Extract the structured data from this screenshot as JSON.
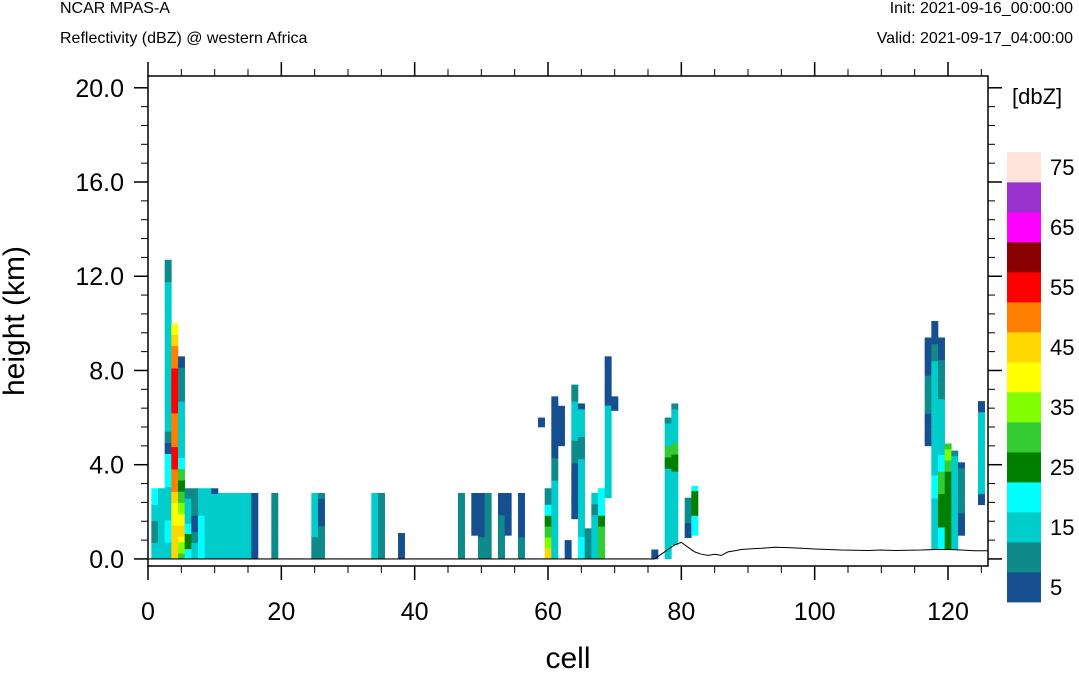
{
  "header": {
    "model": "NCAR MPAS-A",
    "field": "Reflectivity (dBZ) @ western Africa",
    "init": "Init: 2021-09-16_00:00:00",
    "valid": "Valid: 2021-09-17_04:00:00"
  },
  "chart_data": {
    "type": "heatmap",
    "xlabel": "cell",
    "ylabel": "height (km)",
    "xlim": [
      0,
      126
    ],
    "ylim": [
      -0.3,
      20.5
    ],
    "x_ticks": [
      0,
      20,
      40,
      60,
      80,
      100,
      120
    ],
    "y_ticks": [
      0.0,
      4.0,
      8.0,
      12.0,
      16.0,
      20.0
    ],
    "y_tick_labels": [
      "0.0",
      "4.0",
      "8.0",
      "12.0",
      "16.0",
      "20.0"
    ],
    "grid": false,
    "colorbar": {
      "title": "[dbZ]",
      "levels": [
        5,
        10,
        15,
        20,
        25,
        30,
        35,
        40,
        45,
        50,
        55,
        60,
        65,
        70,
        75
      ],
      "labels": [
        "5",
        "15",
        "25",
        "35",
        "45",
        "55",
        "65",
        "75"
      ],
      "colors": [
        "#164f8f",
        "#0f8a8a",
        "#00cccc",
        "#00ffff",
        "#008000",
        "#33cc33",
        "#7fff00",
        "#ffff00",
        "#ffd700",
        "#ff8000",
        "#ff0000",
        "#8b0000",
        "#ff00ff",
        "#9932cc",
        "#ffe4dc"
      ]
    },
    "cells": [
      [
        1,
        0.0,
        3.0,
        [
          15,
          15,
          15,
          10,
          10,
          10,
          10,
          15,
          15,
          15,
          20,
          20,
          20
        ]
      ],
      [
        2,
        0.0,
        3.0,
        [
          15,
          15,
          15,
          15,
          15,
          15,
          15,
          15,
          15,
          15,
          15,
          15,
          15
        ]
      ],
      [
        3,
        0.0,
        12.7,
        [
          15,
          15,
          15,
          20,
          20,
          20,
          20,
          15,
          15,
          15,
          15,
          15,
          15,
          20,
          20,
          20,
          20,
          20,
          20,
          5,
          5,
          10,
          10,
          15,
          15,
          15,
          15,
          15,
          15,
          15,
          15,
          15,
          15,
          15,
          15,
          15,
          15,
          15,
          15,
          15,
          15,
          15,
          15,
          15,
          15,
          15,
          15,
          15,
          15,
          15,
          10,
          10,
          10,
          10
        ]
      ],
      [
        4,
        0.0,
        10.0,
        [
          45,
          45,
          45,
          45,
          45,
          45,
          40,
          40,
          40,
          40,
          45,
          45,
          50,
          50,
          50,
          50,
          55,
          55,
          55,
          55,
          50,
          50,
          50,
          50,
          50,
          50,
          55,
          55,
          55,
          55,
          55,
          55,
          55,
          55,
          50,
          50,
          50,
          50,
          45,
          45,
          40,
          40
        ]
      ],
      [
        5,
        0.0,
        8.6,
        [
          30,
          35,
          35,
          40,
          45,
          45,
          40,
          40,
          35,
          35,
          30,
          30,
          25,
          25,
          30,
          30,
          20,
          20,
          15,
          15,
          15,
          15,
          15,
          15,
          15,
          15,
          15,
          15,
          10,
          10,
          10,
          10,
          10,
          10,
          5,
          5
        ]
      ],
      [
        6,
        0.0,
        3.0,
        [
          20,
          20,
          25,
          25,
          25,
          20,
          20,
          15,
          15,
          15,
          15,
          15,
          10,
          10
        ]
      ],
      [
        7,
        0.0,
        3.0,
        [
          15,
          15,
          15,
          10,
          10,
          5,
          5,
          5,
          10,
          10,
          10,
          10,
          10
        ]
      ],
      [
        8,
        0.0,
        3.0,
        [
          20,
          20,
          20,
          20,
          20,
          20,
          20,
          20,
          15,
          15,
          15,
          15,
          15
        ]
      ],
      [
        9,
        0.0,
        3.0,
        [
          15,
          15,
          15,
          15,
          15,
          15,
          15,
          15,
          15,
          15,
          15,
          15,
          15
        ]
      ],
      [
        10,
        0.0,
        3.0,
        [
          15,
          15,
          15,
          15,
          15,
          15,
          15,
          15,
          15,
          15,
          15,
          15,
          5
        ]
      ],
      [
        11,
        0.0,
        2.8,
        [
          15,
          15,
          15,
          15,
          15,
          15,
          15,
          15,
          15,
          15,
          15,
          15
        ]
      ],
      [
        12,
        0.0,
        2.8,
        [
          15,
          15,
          15,
          15,
          15,
          15,
          15,
          15,
          15,
          15,
          15,
          15
        ]
      ],
      [
        13,
        0.0,
        2.8,
        [
          15,
          15,
          15,
          15,
          15,
          15,
          15,
          15,
          15,
          15,
          15,
          15
        ]
      ],
      [
        14,
        0.0,
        2.8,
        [
          15,
          15,
          15,
          15,
          15,
          15,
          15,
          15,
          15,
          15,
          15,
          15
        ]
      ],
      [
        15,
        0.0,
        2.8,
        [
          15,
          15,
          15,
          15,
          15,
          15,
          15,
          15,
          15,
          15,
          15,
          15
        ]
      ],
      [
        16,
        0.0,
        2.8,
        [
          5,
          5,
          5,
          5,
          5,
          5,
          5,
          5,
          5,
          5,
          5,
          5
        ]
      ],
      [
        19,
        0.0,
        2.8,
        [
          10,
          10,
          10,
          10,
          10,
          10,
          10,
          10,
          10,
          10,
          10,
          10
        ]
      ],
      [
        25,
        0.0,
        2.8,
        [
          10,
          10,
          10,
          10,
          15,
          15,
          15,
          15,
          15,
          15,
          15,
          15
        ]
      ],
      [
        26,
        0.0,
        2.8,
        [
          10,
          10,
          10,
          10,
          10,
          10,
          5,
          5,
          5,
          5,
          5,
          10
        ]
      ],
      [
        34,
        0.0,
        2.8,
        [
          15,
          15,
          15,
          15,
          15,
          15,
          15,
          15,
          15,
          15,
          15,
          15
        ]
      ],
      [
        35,
        0.0,
        2.8,
        [
          10,
          10,
          10,
          10,
          10,
          10,
          10,
          10,
          10,
          10,
          10,
          10
        ]
      ],
      [
        38,
        0.0,
        1.1,
        [
          5,
          5,
          5,
          5,
          5
        ]
      ],
      [
        47,
        0.0,
        2.8,
        [
          10,
          10,
          10,
          10,
          10,
          10,
          10,
          10,
          10,
          10,
          10,
          10
        ]
      ],
      [
        49,
        1.0,
        2.8,
        [
          5,
          5,
          5,
          5,
          5,
          5,
          5,
          5
        ]
      ],
      [
        50,
        0.0,
        2.8,
        [
          10,
          10,
          10,
          10,
          5,
          5,
          5,
          5,
          5,
          5,
          5,
          5
        ]
      ],
      [
        51,
        0.0,
        2.8,
        [
          10,
          10,
          10,
          10,
          10,
          10,
          10,
          10,
          10,
          10,
          10,
          10
        ]
      ],
      [
        53,
        0.0,
        2.8,
        [
          10,
          10,
          10,
          10,
          10,
          10,
          10,
          10,
          5,
          5,
          5,
          5
        ]
      ],
      [
        54,
        1.0,
        2.8,
        [
          5,
          5,
          5,
          5,
          5,
          5,
          5,
          5
        ]
      ],
      [
        56,
        0.0,
        2.8,
        [
          10,
          10,
          10,
          10,
          5,
          5,
          5,
          5,
          5,
          5,
          5,
          5
        ]
      ],
      [
        60,
        0.0,
        3.0,
        [
          45,
          45,
          35,
          35,
          30,
          30,
          25,
          25,
          20,
          20,
          10,
          10,
          10
        ]
      ],
      [
        59,
        5.6,
        6.0,
        [
          5,
          5
        ]
      ],
      [
        61,
        0.0,
        6.9,
        [
          15,
          15,
          15,
          15,
          15,
          15,
          15,
          15,
          15,
          15,
          15,
          15,
          15,
          15,
          10,
          10,
          10,
          10,
          5,
          5,
          5,
          5,
          5,
          5,
          5,
          5,
          5,
          5,
          5
        ]
      ],
      [
        62,
        4.8,
        6.5,
        [
          5,
          5,
          5,
          5,
          5,
          5,
          5
        ]
      ],
      [
        63,
        0.0,
        0.8,
        [
          5,
          5,
          5
        ]
      ],
      [
        64,
        1.7,
        7.4,
        [
          5,
          5,
          5,
          5,
          5,
          5,
          5,
          5,
          5,
          5,
          10,
          10,
          10,
          10,
          15,
          15,
          15,
          15,
          15,
          15,
          15,
          10,
          10,
          10
        ]
      ],
      [
        65,
        0.0,
        6.6,
        [
          20,
          20,
          20,
          20,
          15,
          15,
          15,
          15,
          15,
          15,
          15,
          15,
          15,
          15,
          15,
          15,
          15,
          15,
          10,
          10,
          10,
          10,
          15,
          15,
          15,
          15,
          15,
          5
        ]
      ],
      [
        66,
        0.0,
        1.3,
        [
          10,
          10,
          10,
          10,
          10,
          10
        ]
      ],
      [
        67,
        0.0,
        2.8,
        [
          15,
          15,
          15,
          15,
          15,
          15,
          15,
          15,
          10,
          10,
          15,
          15
        ]
      ],
      [
        68,
        0.0,
        3.0,
        [
          30,
          30,
          30,
          30,
          30,
          30,
          25,
          25,
          20,
          20,
          20,
          20,
          20
        ]
      ],
      [
        69,
        2.6,
        8.6,
        [
          15,
          15,
          15,
          15,
          15,
          15,
          15,
          15,
          15,
          15,
          15,
          15,
          15,
          15,
          15,
          15,
          15,
          5,
          5,
          5,
          5,
          5,
          5,
          5,
          5,
          5
        ]
      ],
      [
        70,
        6.3,
        6.9,
        [
          5,
          5,
          5
        ]
      ],
      [
        76,
        0.0,
        0.4,
        [
          5,
          5
        ]
      ],
      [
        78,
        0.0,
        6.0,
        [
          15,
          15,
          15,
          15,
          15,
          15,
          15,
          15,
          15,
          15,
          15,
          15,
          15,
          15,
          15,
          15,
          25,
          25,
          30,
          30,
          15,
          15,
          15,
          15,
          10
        ]
      ],
      [
        79,
        0.6,
        6.6,
        [
          15,
          15,
          15,
          15,
          15,
          15,
          15,
          15,
          15,
          15,
          15,
          15,
          15,
          25,
          25,
          25,
          30,
          30,
          15,
          15,
          15,
          15,
          15,
          15,
          10
        ]
      ],
      [
        81,
        0.9,
        2.6,
        [
          5,
          5,
          5,
          10,
          10,
          10,
          10,
          10
        ]
      ],
      [
        82,
        1.0,
        3.1,
        [
          20,
          20,
          20,
          20,
          25,
          25,
          25,
          25,
          25,
          20
        ]
      ],
      [
        117,
        4.8,
        9.4,
        [
          5,
          5,
          5,
          5,
          5,
          5,
          10,
          10,
          10,
          10,
          10,
          10,
          10,
          5,
          5,
          5,
          5,
          5,
          5,
          5
        ]
      ],
      [
        118,
        0.4,
        10.1,
        [
          15,
          15,
          15,
          15,
          15,
          15,
          15,
          15,
          15,
          20,
          20,
          20,
          20,
          15,
          15,
          15,
          15,
          15,
          15,
          15,
          15,
          15,
          15,
          15,
          15,
          15,
          15,
          15,
          15,
          15,
          15,
          15,
          15,
          10,
          10,
          10,
          5,
          5,
          5,
          5
        ]
      ],
      [
        119,
        0.4,
        9.4,
        [
          20,
          20,
          20,
          20,
          25,
          25,
          25,
          25,
          25,
          25,
          30,
          30,
          30,
          30,
          20,
          20,
          20,
          15,
          15,
          15,
          15,
          15,
          15,
          15,
          15,
          15,
          15,
          10,
          10,
          10,
          10,
          10,
          10,
          10,
          5,
          5,
          5,
          5
        ]
      ],
      [
        120,
        0.4,
        4.9,
        [
          25,
          25,
          25,
          25,
          25,
          25,
          25,
          25,
          25,
          25,
          25,
          25,
          25,
          25,
          30,
          30,
          35,
          35,
          30
        ]
      ],
      [
        121,
        0.4,
        4.6,
        [
          15,
          15,
          15,
          15,
          15,
          15,
          15,
          15,
          15,
          15,
          15,
          15,
          15,
          15,
          15,
          15,
          15,
          15,
          10
        ]
      ],
      [
        122,
        1.0,
        4.1,
        [
          5,
          5,
          5,
          5,
          10,
          10,
          10,
          10,
          10,
          10,
          10,
          10,
          5
        ]
      ],
      [
        125,
        2.3,
        6.7,
        [
          5,
          5,
          15,
          15,
          15,
          15,
          15,
          15,
          15,
          15,
          15,
          15,
          15,
          15,
          15,
          15,
          15,
          5,
          5
        ]
      ]
    ],
    "terrain": [
      [
        76,
        0.0
      ],
      [
        77,
        0.2
      ],
      [
        78,
        0.4
      ],
      [
        79,
        0.6
      ],
      [
        80,
        0.7
      ],
      [
        81,
        0.5
      ],
      [
        82,
        0.3
      ],
      [
        83,
        0.2
      ],
      [
        84,
        0.15
      ],
      [
        85,
        0.2
      ],
      [
        86,
        0.15
      ],
      [
        87,
        0.3
      ],
      [
        88,
        0.35
      ],
      [
        89,
        0.4
      ],
      [
        90,
        0.42
      ],
      [
        92,
        0.45
      ],
      [
        94,
        0.5
      ],
      [
        96,
        0.48
      ],
      [
        98,
        0.45
      ],
      [
        100,
        0.42
      ],
      [
        102,
        0.4
      ],
      [
        104,
        0.38
      ],
      [
        106,
        0.37
      ],
      [
        108,
        0.36
      ],
      [
        110,
        0.38
      ],
      [
        112,
        0.36
      ],
      [
        114,
        0.37
      ],
      [
        116,
        0.38
      ],
      [
        118,
        0.4
      ],
      [
        120,
        0.4
      ],
      [
        122,
        0.38
      ],
      [
        124,
        0.35
      ],
      [
        126,
        0.35
      ]
    ]
  }
}
